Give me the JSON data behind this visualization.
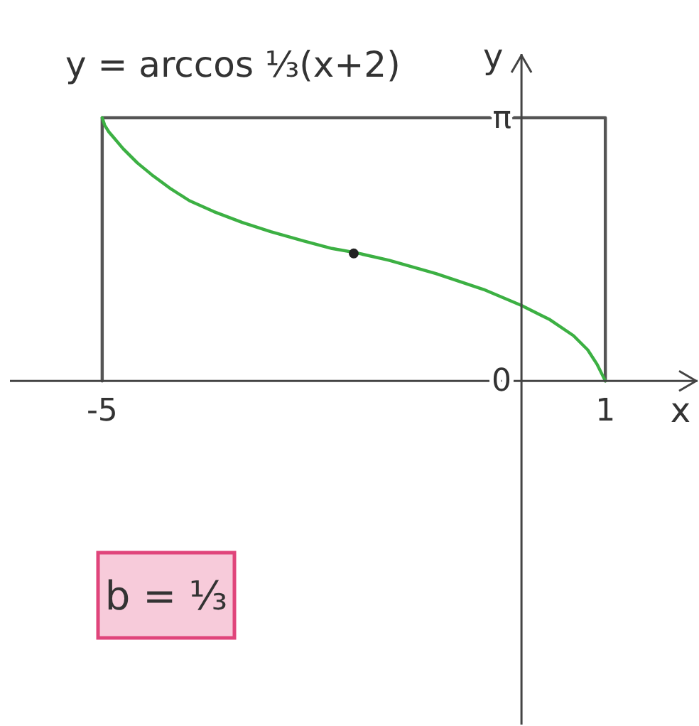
{
  "chart_data": {
    "type": "line",
    "title": "y = arccos ⅓(x+2)",
    "xlabel": "x",
    "ylabel": "y",
    "annotations": [
      "b = ⅓"
    ],
    "xlim": [
      -6.1,
      2.1
    ],
    "ylim": [
      -4.1,
      3.9
    ],
    "xticks": [
      -5,
      1
    ],
    "yticks": [
      0,
      {
        "value": 3.14,
        "label": "π"
      }
    ],
    "series": [
      {
        "color": "#555555",
        "x": [
          -5,
          -5,
          1,
          1
        ],
        "values": [
          0,
          3.14,
          3.14,
          0
        ]
      },
      {
        "color": "#3cb043",
        "x": [
          -5,
          -4.97,
          -4.92,
          -4.86,
          -4.75,
          -4.58,
          -4.41,
          -4.18,
          -3.96,
          -3.67,
          -3.33,
          -2.99,
          -2.6,
          -2.26,
          -1.98,
          -1.58,
          -1.02,
          -0.45,
          0,
          0.34,
          0.62,
          0.79,
          0.9,
          0.97,
          1
        ],
        "values": [
          3.14,
          3.05,
          2.97,
          2.9,
          2.77,
          2.6,
          2.46,
          2.29,
          2.15,
          2.02,
          1.89,
          1.78,
          1.67,
          1.58,
          1.53,
          1.44,
          1.28,
          1.09,
          0.9,
          0.73,
          0.54,
          0.37,
          0.2,
          0.06,
          0
        ]
      },
      {
        "type": "scatter",
        "marker": "circle",
        "color": "#222222",
        "x": [
          -2
        ],
        "values": [
          1.52
        ]
      }
    ]
  }
}
